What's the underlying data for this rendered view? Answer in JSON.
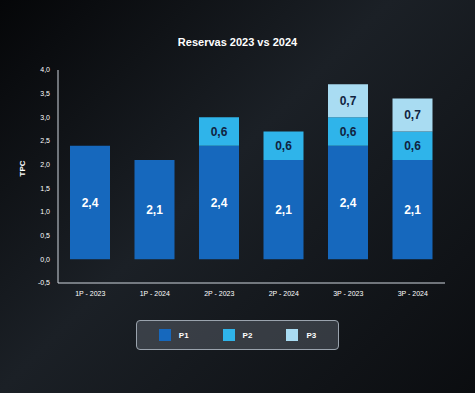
{
  "chart_data": {
    "type": "bar",
    "title": "Reservas 2023 vs 2024",
    "y_label": "TPC",
    "categories": [
      "1P - 2023",
      "1P - 2024",
      "2P - 2023",
      "2P - 2024",
      "3P - 2023",
      "3P - 2024"
    ],
    "series": [
      {
        "name": "P1",
        "color": "#1668bd",
        "values": [
          2.4,
          2.1,
          2.4,
          2.1,
          2.4,
          2.1
        ],
        "value_labels": [
          "2,4",
          "2,1",
          "2,4",
          "2,1",
          "2,4",
          "2,1"
        ]
      },
      {
        "name": "P2",
        "color": "#2fb4ea",
        "values": [
          null,
          null,
          0.6,
          0.6,
          0.6,
          0.6
        ],
        "value_labels": [
          null,
          null,
          "0,6",
          "0,6",
          "0,6",
          "0,6"
        ]
      },
      {
        "name": "P3",
        "color": "#a9dcf2",
        "values": [
          null,
          null,
          null,
          null,
          0.7,
          0.7
        ],
        "value_labels": [
          null,
          null,
          null,
          null,
          "0,7",
          "0,7"
        ]
      }
    ],
    "ylim": [
      -0.5,
      4.0
    ],
    "yticks": [
      {
        "value": -0.5,
        "label": "-0,5"
      },
      {
        "value": 0,
        "label": "0,0"
      },
      {
        "value": 0.5,
        "label": "0,5"
      },
      {
        "value": 1.0,
        "label": "1,0"
      },
      {
        "value": 1.5,
        "label": "1,5"
      },
      {
        "value": 2.0,
        "label": "2,0"
      },
      {
        "value": 2.5,
        "label": "2,5"
      },
      {
        "value": 3.0,
        "label": "3,0"
      },
      {
        "value": 3.5,
        "label": "3,5"
      },
      {
        "value": 4.0,
        "label": "4,0"
      }
    ],
    "stacked": true,
    "data_labels": true,
    "legend": "bottom",
    "grid": false
  }
}
